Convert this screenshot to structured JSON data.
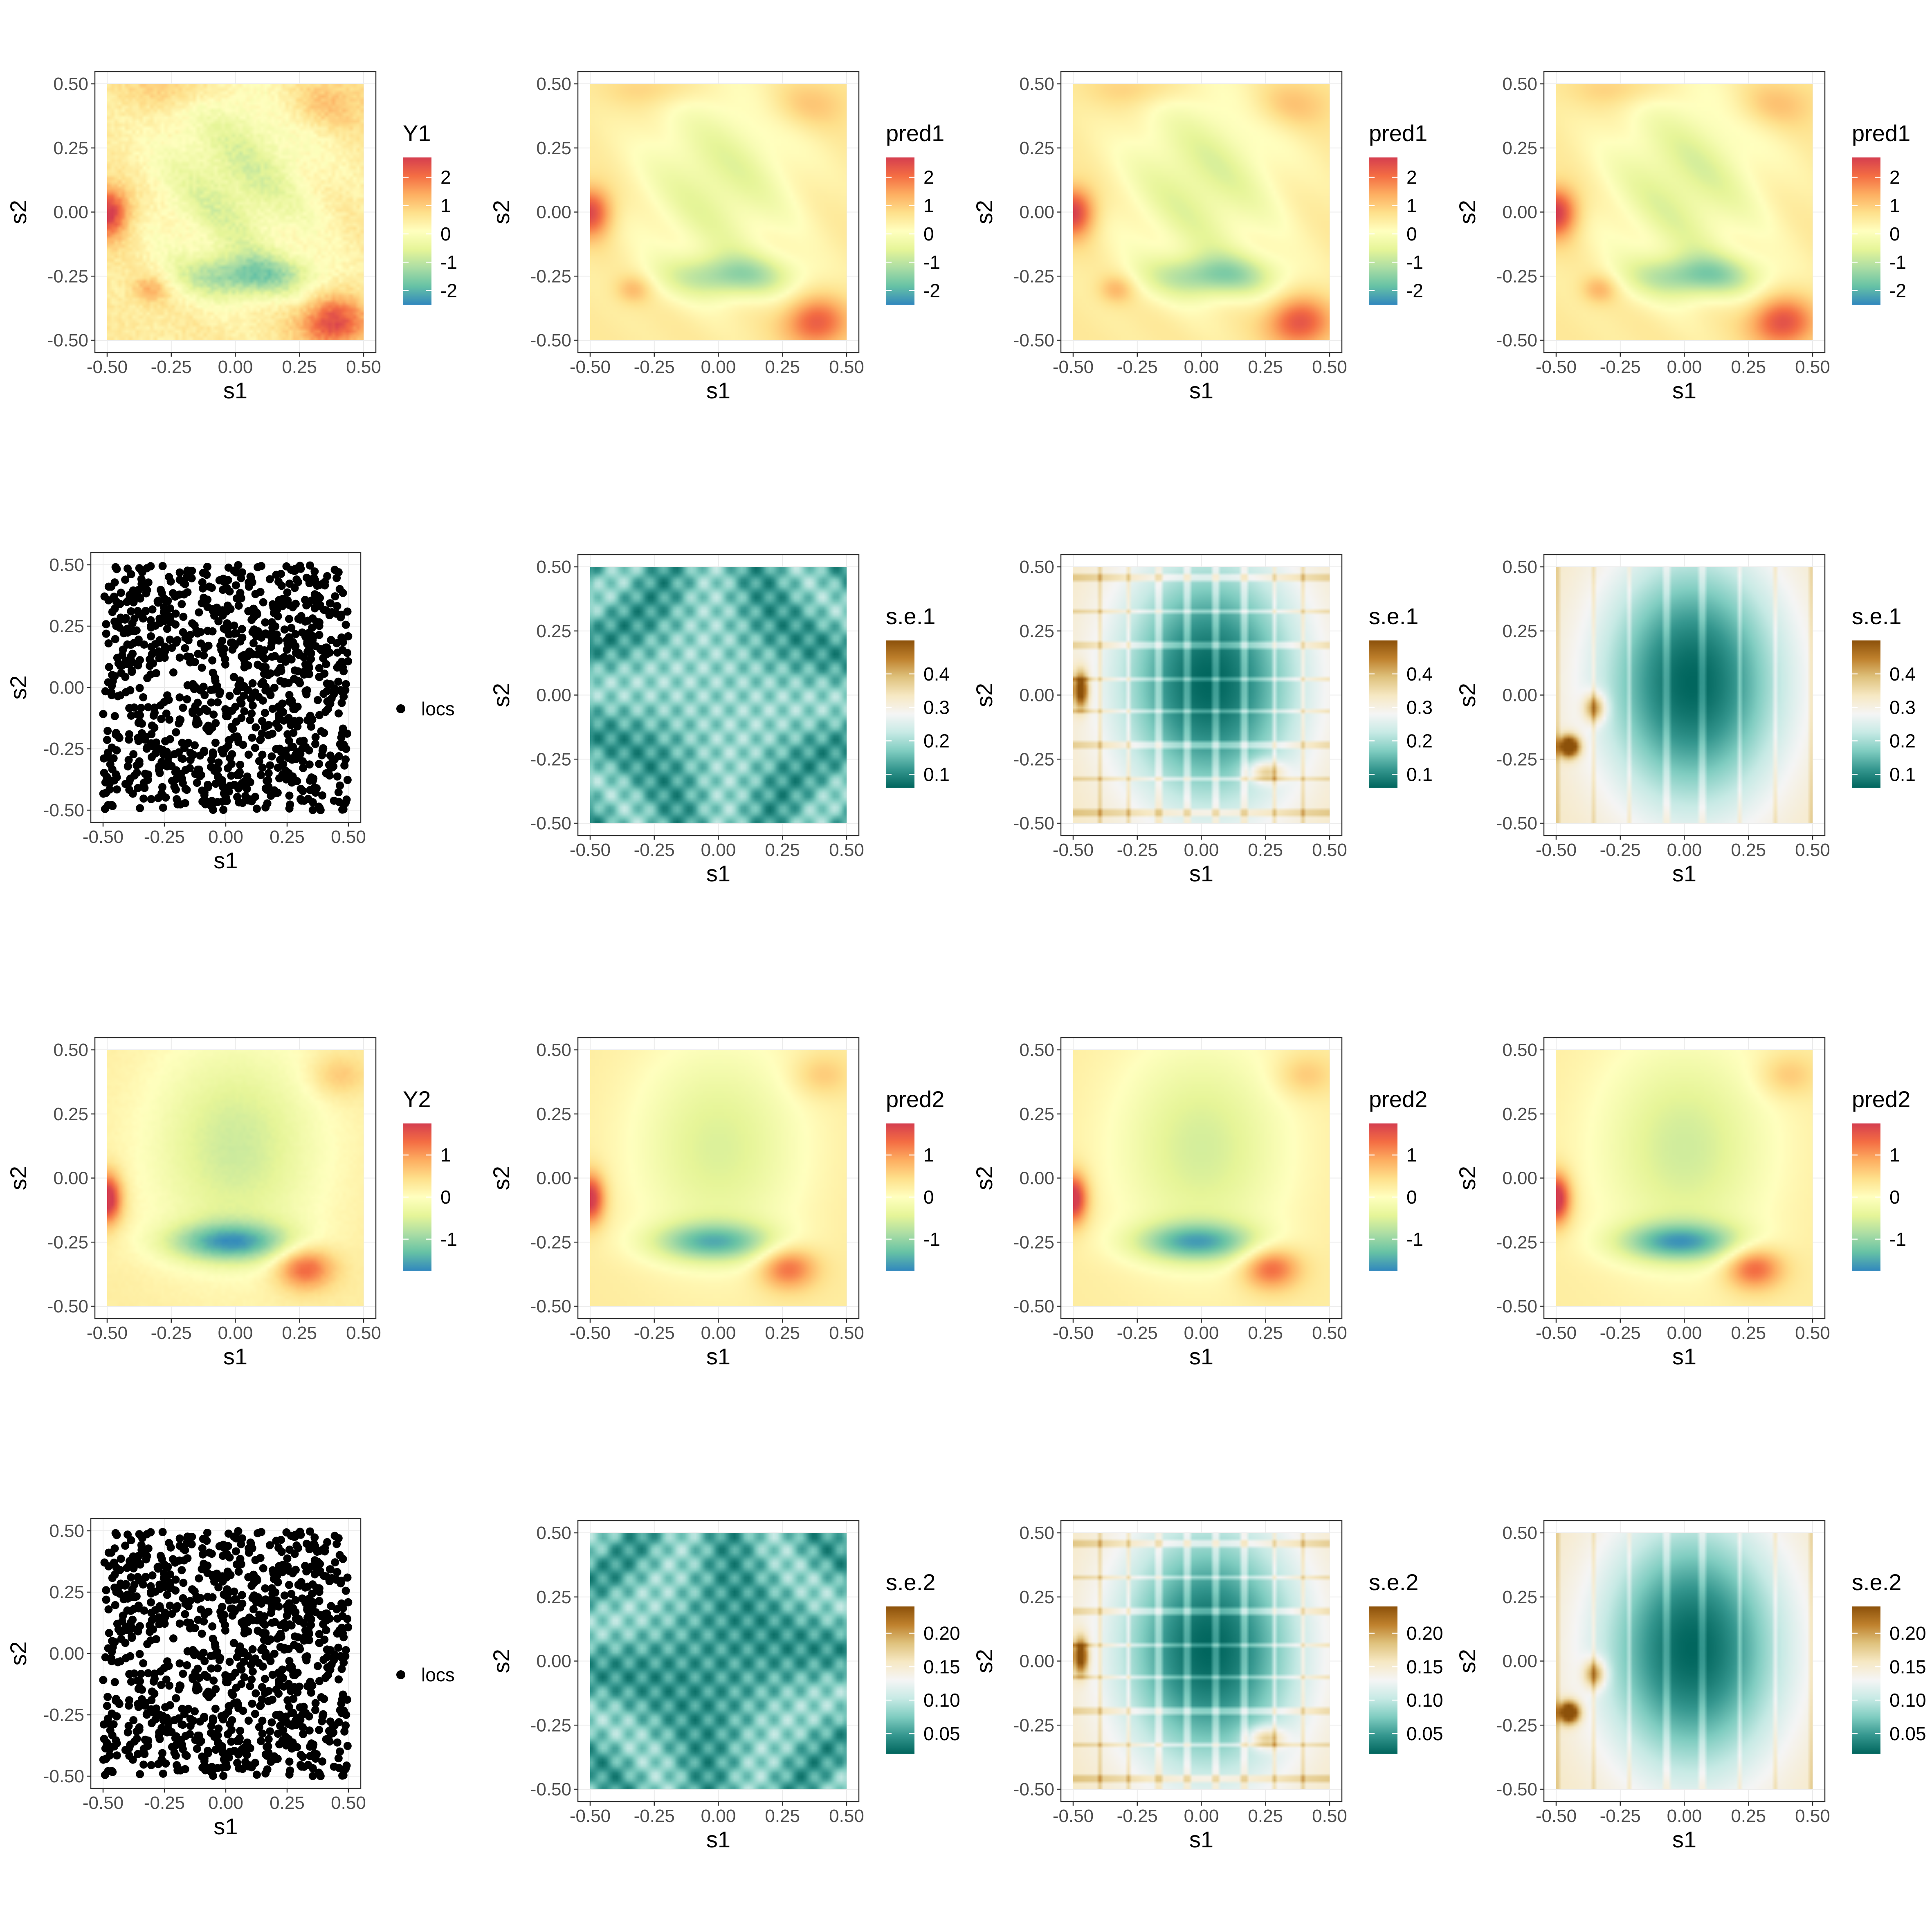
{
  "chart_data": {
    "type": "heatmap",
    "layout": {
      "rows": 4,
      "cols": 4
    },
    "axes": {
      "xlabel": "s1",
      "ylabel": "s2",
      "xlim": [
        -0.5,
        0.5
      ],
      "ylim": [
        -0.5,
        0.5
      ],
      "ticks": [
        -0.5,
        -0.25,
        0.0,
        0.25,
        0.5
      ],
      "tick_labels": [
        "-0.50",
        "-0.25",
        "0.00",
        "0.25",
        "0.50"
      ],
      "grid": true
    },
    "colorscales": {
      "spectral": [
        "#3288bd",
        "#66c2a5",
        "#abdda4",
        "#e6f598",
        "#ffffbf",
        "#fee08b",
        "#fdae61",
        "#f46d43",
        "#d53e4f"
      ],
      "brbg": [
        "#01665e",
        "#35978f",
        "#80cdc1",
        "#c7eae5",
        "#f5f5f5",
        "#f6e8c3",
        "#dfc27d",
        "#bf812d",
        "#8c510a"
      ]
    },
    "panels": [
      {
        "row": 0,
        "col": 0,
        "kind": "field",
        "variable": "Y1",
        "legend_title": "Y1",
        "scale": "spectral",
        "range": [
          -2.5,
          2.7
        ],
        "legend_ticks": [
          2,
          1,
          0,
          -1,
          -2
        ],
        "tick_labels": [
          "2",
          "1",
          "0",
          "-1",
          "-2"
        ],
        "smooth": 0.0,
        "noise": 0.35
      },
      {
        "row": 0,
        "col": 1,
        "kind": "field",
        "variable": "Y1",
        "legend_title": "pred1",
        "scale": "spectral",
        "range": [
          -2.5,
          2.7
        ],
        "legend_ticks": [
          2,
          1,
          0,
          -1,
          -2
        ],
        "tick_labels": [
          "2",
          "1",
          "0",
          "-1",
          "-2"
        ],
        "smooth": 0.6,
        "noise": 0.0
      },
      {
        "row": 0,
        "col": 2,
        "kind": "field",
        "variable": "Y1",
        "legend_title": "pred1",
        "scale": "spectral",
        "range": [
          -2.5,
          2.7
        ],
        "legend_ticks": [
          2,
          1,
          0,
          -1,
          -2
        ],
        "tick_labels": [
          "2",
          "1",
          "0",
          "-1",
          "-2"
        ],
        "smooth": 0.3,
        "noise": 0.0
      },
      {
        "row": 0,
        "col": 3,
        "kind": "field",
        "variable": "Y1",
        "legend_title": "pred1",
        "scale": "spectral",
        "range": [
          -2.5,
          2.7
        ],
        "legend_ticks": [
          2,
          1,
          0,
          -1,
          -2
        ],
        "tick_labels": [
          "2",
          "1",
          "0",
          "-1",
          "-2"
        ],
        "smooth": 0.15,
        "noise": 0.0
      },
      {
        "row": 1,
        "col": 0,
        "kind": "points",
        "legend_label": "locs",
        "n_points": 1000
      },
      {
        "row": 1,
        "col": 1,
        "kind": "se",
        "method": "local",
        "legend_title": "s.e.1",
        "scale": "brbg",
        "range": [
          0.06,
          0.5
        ],
        "legend_ticks": [
          0.4,
          0.3,
          0.2,
          0.1
        ],
        "tick_labels": [
          "0.4",
          "0.3",
          "0.2",
          "0.1"
        ]
      },
      {
        "row": 1,
        "col": 2,
        "kind": "se",
        "method": "grid",
        "legend_title": "s.e.1",
        "scale": "brbg",
        "range": [
          0.06,
          0.5
        ],
        "legend_ticks": [
          0.4,
          0.3,
          0.2,
          0.1
        ],
        "tick_labels": [
          "0.4",
          "0.3",
          "0.2",
          "0.1"
        ]
      },
      {
        "row": 1,
        "col": 3,
        "kind": "se",
        "method": "elliptic",
        "legend_title": "s.e.1",
        "scale": "brbg",
        "range": [
          0.06,
          0.5
        ],
        "legend_ticks": [
          0.4,
          0.3,
          0.2,
          0.1
        ],
        "tick_labels": [
          "0.4",
          "0.3",
          "0.2",
          "0.1"
        ]
      },
      {
        "row": 2,
        "col": 0,
        "kind": "field",
        "variable": "Y2",
        "legend_title": "Y2",
        "scale": "spectral",
        "range": [
          -1.75,
          1.75
        ],
        "legend_ticks": [
          1,
          0,
          -1
        ],
        "tick_labels": [
          "1",
          "0",
          "-1"
        ],
        "smooth": 0.1,
        "noise": 0.05
      },
      {
        "row": 2,
        "col": 1,
        "kind": "field",
        "variable": "Y2",
        "legend_title": "pred2",
        "scale": "spectral",
        "range": [
          -1.75,
          1.75
        ],
        "legend_ticks": [
          1,
          0,
          -1
        ],
        "tick_labels": [
          "1",
          "0",
          "-1"
        ],
        "smooth": 0.6,
        "noise": 0.0
      },
      {
        "row": 2,
        "col": 2,
        "kind": "field",
        "variable": "Y2",
        "legend_title": "pred2",
        "scale": "spectral",
        "range": [
          -1.75,
          1.75
        ],
        "legend_ticks": [
          1,
          0,
          -1
        ],
        "tick_labels": [
          "1",
          "0",
          "-1"
        ],
        "smooth": 0.35,
        "noise": 0.0
      },
      {
        "row": 2,
        "col": 3,
        "kind": "field",
        "variable": "Y2",
        "legend_title": "pred2",
        "scale": "spectral",
        "range": [
          -1.75,
          1.75
        ],
        "legend_ticks": [
          1,
          0,
          -1
        ],
        "tick_labels": [
          "1",
          "0",
          "-1"
        ],
        "smooth": 0.2,
        "noise": 0.0
      },
      {
        "row": 3,
        "col": 0,
        "kind": "points",
        "legend_label": "locs",
        "n_points": 1000
      },
      {
        "row": 3,
        "col": 1,
        "kind": "se",
        "method": "local",
        "legend_title": "s.e.2",
        "scale": "brbg",
        "range": [
          0.02,
          0.24
        ],
        "legend_ticks": [
          0.2,
          0.15,
          0.1,
          0.05
        ],
        "tick_labels": [
          "0.20",
          "0.15",
          "0.10",
          "0.05"
        ]
      },
      {
        "row": 3,
        "col": 2,
        "kind": "se",
        "method": "grid",
        "legend_title": "s.e.2",
        "scale": "brbg",
        "range": [
          0.02,
          0.24
        ],
        "legend_ticks": [
          0.2,
          0.15,
          0.1,
          0.05
        ],
        "tick_labels": [
          "0.20",
          "0.15",
          "0.10",
          "0.05"
        ]
      },
      {
        "row": 3,
        "col": 3,
        "kind": "se",
        "method": "elliptic",
        "legend_title": "s.e.2",
        "scale": "brbg",
        "range": [
          0.02,
          0.24
        ],
        "legend_ticks": [
          0.2,
          0.15,
          0.1,
          0.05
        ],
        "tick_labels": [
          "0.20",
          "0.15",
          "0.10",
          "0.05"
        ]
      }
    ]
  }
}
